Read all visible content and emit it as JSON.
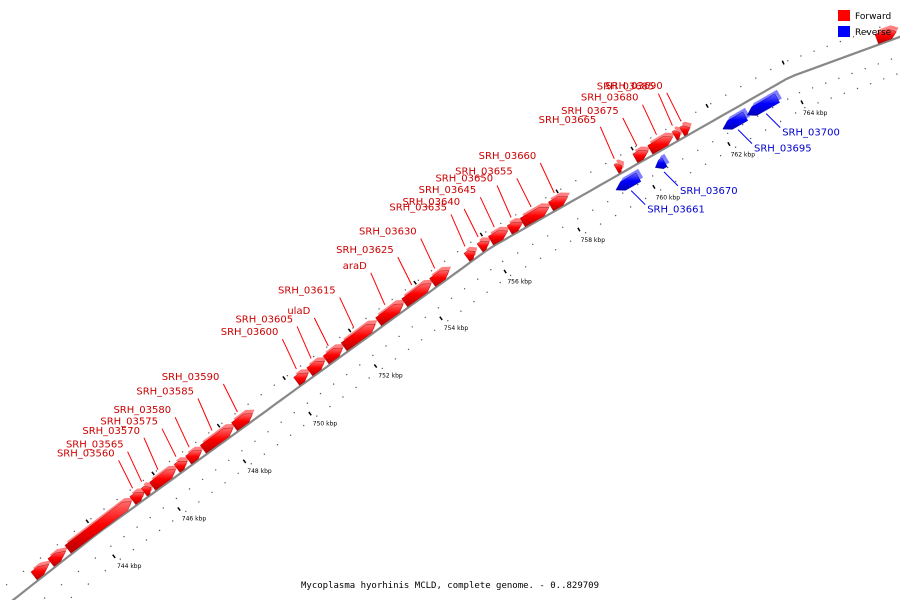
{
  "legend": [
    {
      "label": "Forward",
      "color": "#ff0000"
    },
    {
      "label": "Reverse",
      "color": "#0000ff"
    }
  ],
  "caption": "Mycoplasma hyorhinis MCLD, complete genome. - 0..829709",
  "colors": {
    "forward": "#ff0000",
    "reverse": "#0000ff",
    "forward_text": "#cc0000",
    "reverse_text": "#0000cc",
    "axis": "#888888"
  },
  "ticks": [
    {
      "kbp": 744,
      "label": "744 kbp"
    },
    {
      "kbp": 746,
      "label": "746 kbp"
    },
    {
      "kbp": 748,
      "label": "748 kbp"
    },
    {
      "kbp": 750,
      "label": "750 kbp"
    },
    {
      "kbp": 752,
      "label": "752 kbp"
    },
    {
      "kbp": 754,
      "label": "754 kbp"
    },
    {
      "kbp": 756,
      "label": "756 kbp"
    },
    {
      "kbp": 758,
      "label": "758 kbp"
    },
    {
      "kbp": 760,
      "label": "760 kbp"
    },
    {
      "kbp": 762,
      "label": "762 kbp"
    },
    {
      "kbp": 764,
      "label": "764 kbp"
    }
  ],
  "genes": [
    {
      "name": "",
      "strand": "forward",
      "start_kbp": 742.6,
      "end_kbp": 742.95
    },
    {
      "name": "",
      "strand": "forward",
      "start_kbp": 743.0,
      "end_kbp": 743.35
    },
    {
      "name": "",
      "strand": "forward",
      "start_kbp": 743.4,
      "end_kbp": 745.15
    },
    {
      "name": "SRH_03560",
      "strand": "forward",
      "start_kbp": 745.2,
      "end_kbp": 745.55
    },
    {
      "name": "SRH_03565",
      "strand": "forward",
      "start_kbp": 745.55,
      "end_kbp": 745.75
    },
    {
      "name": "SRH_03570",
      "strand": "forward",
      "start_kbp": 745.8,
      "end_kbp": 746.5
    },
    {
      "name": "SRH_03575",
      "strand": "forward",
      "start_kbp": 746.55,
      "end_kbp": 746.85
    },
    {
      "name": "SRH_03580",
      "strand": "forward",
      "start_kbp": 746.9,
      "end_kbp": 747.3
    },
    {
      "name": "SRH_03585",
      "strand": "forward",
      "start_kbp": 747.35,
      "end_kbp": 748.25
    },
    {
      "name": "SRH_03590",
      "strand": "forward",
      "start_kbp": 748.3,
      "end_kbp": 748.85
    },
    {
      "name": "SRH_03600",
      "strand": "forward",
      "start_kbp": 750.2,
      "end_kbp": 750.55
    },
    {
      "name": "SRH_03605",
      "strand": "forward",
      "start_kbp": 750.6,
      "end_kbp": 751.05
    },
    {
      "name": "ulaD",
      "strand": "forward",
      "start_kbp": 751.1,
      "end_kbp": 751.6
    },
    {
      "name": "SRH_03615",
      "strand": "forward",
      "start_kbp": 751.65,
      "end_kbp": 752.6
    },
    {
      "name": "araD",
      "strand": "forward",
      "start_kbp": 752.7,
      "end_kbp": 753.45
    },
    {
      "name": "SRH_03625",
      "strand": "forward",
      "start_kbp": 753.5,
      "end_kbp": 754.3
    },
    {
      "name": "SRH_03630",
      "strand": "forward",
      "start_kbp": 754.35,
      "end_kbp": 754.85
    },
    {
      "name": "SRH_03635",
      "strand": "forward",
      "start_kbp": 755.4,
      "end_kbp": 755.65
    },
    {
      "name": "SRH_03640",
      "strand": "forward",
      "start_kbp": 755.8,
      "end_kbp": 756.05
    },
    {
      "name": "SRH_03645",
      "strand": "forward",
      "start_kbp": 756.1,
      "end_kbp": 756.55
    },
    {
      "name": "SRH_03650",
      "strand": "forward",
      "start_kbp": 756.6,
      "end_kbp": 756.95
    },
    {
      "name": "SRH_03655",
      "strand": "forward",
      "start_kbp": 756.95,
      "end_kbp": 757.65
    },
    {
      "name": "SRH_03660",
      "strand": "forward",
      "start_kbp": 757.7,
      "end_kbp": 758.15
    },
    {
      "name": "SRH_03661",
      "strand": "reverse",
      "start_kbp": 759.2,
      "end_kbp": 759.8
    },
    {
      "name": "SRH_03665",
      "strand": "forward",
      "start_kbp": 759.45,
      "end_kbp": 759.6
    },
    {
      "name": "SRH_03670",
      "strand": "reverse",
      "start_kbp": 760.25,
      "end_kbp": 760.5
    },
    {
      "name": "SRH_03675",
      "strand": "forward",
      "start_kbp": 759.95,
      "end_kbp": 760.3
    },
    {
      "name": "SRH_03680",
      "strand": "forward",
      "start_kbp": 760.35,
      "end_kbp": 760.95
    },
    {
      "name": "SRH_03685",
      "strand": "forward",
      "start_kbp": 761.0,
      "end_kbp": 761.15
    },
    {
      "name": "SRH_03690",
      "strand": "forward",
      "start_kbp": 761.2,
      "end_kbp": 761.4
    },
    {
      "name": "SRH_03695",
      "strand": "reverse",
      "start_kbp": 762.05,
      "end_kbp": 762.65
    },
    {
      "name": "SRH_03700",
      "strand": "reverse",
      "start_kbp": 762.7,
      "end_kbp": 763.5
    },
    {
      "name": "",
      "strand": "forward",
      "start_kbp": 766.7,
      "end_kbp": 767.3
    }
  ]
}
